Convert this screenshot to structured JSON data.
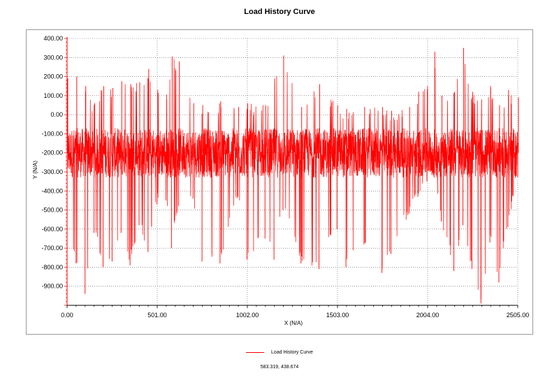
{
  "chart_data": {
    "type": "line",
    "title": "Load History Curve",
    "xlabel": "X (N/A)",
    "ylabel": "Y (N/A)",
    "xlim": [
      0,
      2505
    ],
    "ylim": [
      -1000,
      400
    ],
    "x_ticks": [
      0,
      501,
      1002,
      1503,
      2004,
      2505
    ],
    "x_tick_labels": [
      "0.00",
      "501.00",
      "1002.00",
      "1503.00",
      "2004.00",
      "2505.00"
    ],
    "y_ticks": [
      400,
      300,
      200,
      100,
      0,
      -100,
      -200,
      -300,
      -400,
      -500,
      -600,
      -700,
      -800,
      -900
    ],
    "y_tick_labels": [
      "400.00",
      "300.00",
      "200.00",
      "100.00",
      "0.00",
      "-100.00",
      "-200.00",
      "-300.00",
      "-400.00",
      "-500.00",
      "-600.00",
      "-700.00",
      "-800.00",
      "-900.00"
    ],
    "grid": true,
    "legend_position": "bottom-center",
    "series": [
      {
        "name": "Load History Curve",
        "color": "#ff0000",
        "baseline": -200,
        "band": [
          -330,
          -70
        ],
        "envelope": [
          {
            "x": 0,
            "min": -640,
            "max": 190
          },
          {
            "x": 50,
            "min": -780,
            "max": 200
          },
          {
            "x": 100,
            "min": -940,
            "max": 150
          },
          {
            "x": 150,
            "min": -620,
            "max": 60
          },
          {
            "x": 200,
            "min": -800,
            "max": 150
          },
          {
            "x": 250,
            "min": -770,
            "max": 140
          },
          {
            "x": 300,
            "min": -620,
            "max": 175
          },
          {
            "x": 350,
            "min": -790,
            "max": 160
          },
          {
            "x": 400,
            "min": -580,
            "max": 170
          },
          {
            "x": 450,
            "min": -720,
            "max": 240
          },
          {
            "x": 500,
            "min": -470,
            "max": 130
          },
          {
            "x": 550,
            "min": -450,
            "max": 80
          },
          {
            "x": 580,
            "min": -700,
            "max": 305
          },
          {
            "x": 620,
            "min": -480,
            "max": 280
          },
          {
            "x": 700,
            "min": -440,
            "max": 60
          },
          {
            "x": 750,
            "min": -770,
            "max": 50
          },
          {
            "x": 850,
            "min": -780,
            "max": 70
          },
          {
            "x": 950,
            "min": -430,
            "max": 40
          },
          {
            "x": 1000,
            "min": -760,
            "max": 60
          },
          {
            "x": 1100,
            "min": -650,
            "max": 50
          },
          {
            "x": 1150,
            "min": -760,
            "max": 190
          },
          {
            "x": 1200,
            "min": -500,
            "max": 310
          },
          {
            "x": 1300,
            "min": -780,
            "max": 40
          },
          {
            "x": 1400,
            "min": -810,
            "max": 160
          },
          {
            "x": 1500,
            "min": -600,
            "max": 50
          },
          {
            "x": 1550,
            "min": -800,
            "max": 30
          },
          {
            "x": 1650,
            "min": -680,
            "max": 40
          },
          {
            "x": 1750,
            "min": -830,
            "max": 40
          },
          {
            "x": 1800,
            "min": -730,
            "max": 20
          },
          {
            "x": 1900,
            "min": -520,
            "max": 40
          },
          {
            "x": 1950,
            "min": -430,
            "max": 120
          },
          {
            "x": 2000,
            "min": -350,
            "max": 150
          },
          {
            "x": 2040,
            "min": -330,
            "max": 330
          },
          {
            "x": 2080,
            "min": -560,
            "max": 100
          },
          {
            "x": 2150,
            "min": -820,
            "max": 120
          },
          {
            "x": 2200,
            "min": -580,
            "max": 350
          },
          {
            "x": 2250,
            "min": -810,
            "max": 120
          },
          {
            "x": 2300,
            "min": -990,
            "max": 80
          },
          {
            "x": 2350,
            "min": -670,
            "max": 150
          },
          {
            "x": 2400,
            "min": -880,
            "max": 50
          },
          {
            "x": 2450,
            "min": -590,
            "max": 130
          },
          {
            "x": 2505,
            "min": -330,
            "max": 90
          }
        ]
      }
    ]
  },
  "legend": {
    "label": "Load History Curve"
  },
  "cursor_readout": "583.319, 438.674"
}
